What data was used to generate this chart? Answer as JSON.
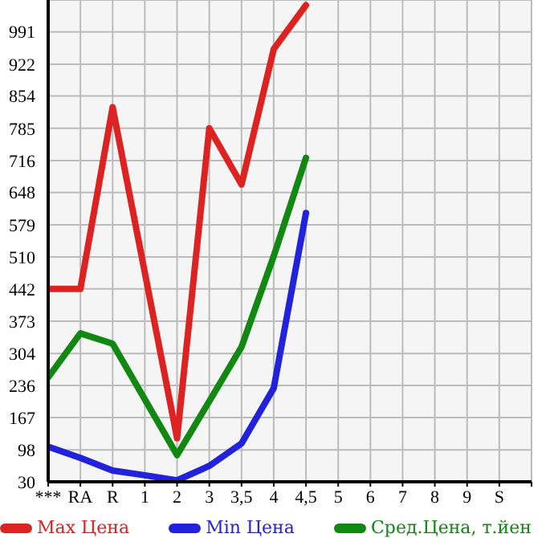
{
  "chart_data": {
    "type": "line",
    "categories": [
      "***",
      "RA",
      "R",
      "1",
      "2",
      "3",
      "3,5",
      "4",
      "4,5",
      "5",
      "6",
      "7",
      "8",
      "9",
      "S"
    ],
    "series": [
      {
        "name": "Max Цена",
        "color": "#dd2222",
        "values": [
          442,
          442,
          830,
          null,
          123,
          785,
          665,
          954,
          1048,
          null,
          null,
          null,
          null,
          null,
          null
        ]
      },
      {
        "name": "Min Цена",
        "color": "#2222dd",
        "values": [
          105,
          81,
          54,
          44,
          33,
          64,
          112,
          230,
          604,
          null,
          null,
          null,
          null,
          null,
          null
        ]
      },
      {
        "name": "Сред.Цена, т.йен",
        "color": "#118811",
        "values": [
          253,
          347,
          325,
          null,
          87,
          202,
          318,
          512,
          722,
          null,
          null,
          null,
          null,
          null,
          null
        ]
      }
    ],
    "ylim": [
      30,
      1059
    ],
    "yticks": [
      30,
      98,
      167,
      236,
      304,
      373,
      442,
      510,
      579,
      648,
      716,
      785,
      854,
      922,
      991
    ],
    "grid": true,
    "legend": "bottom",
    "marker": "none",
    "line_style": "solid"
  }
}
